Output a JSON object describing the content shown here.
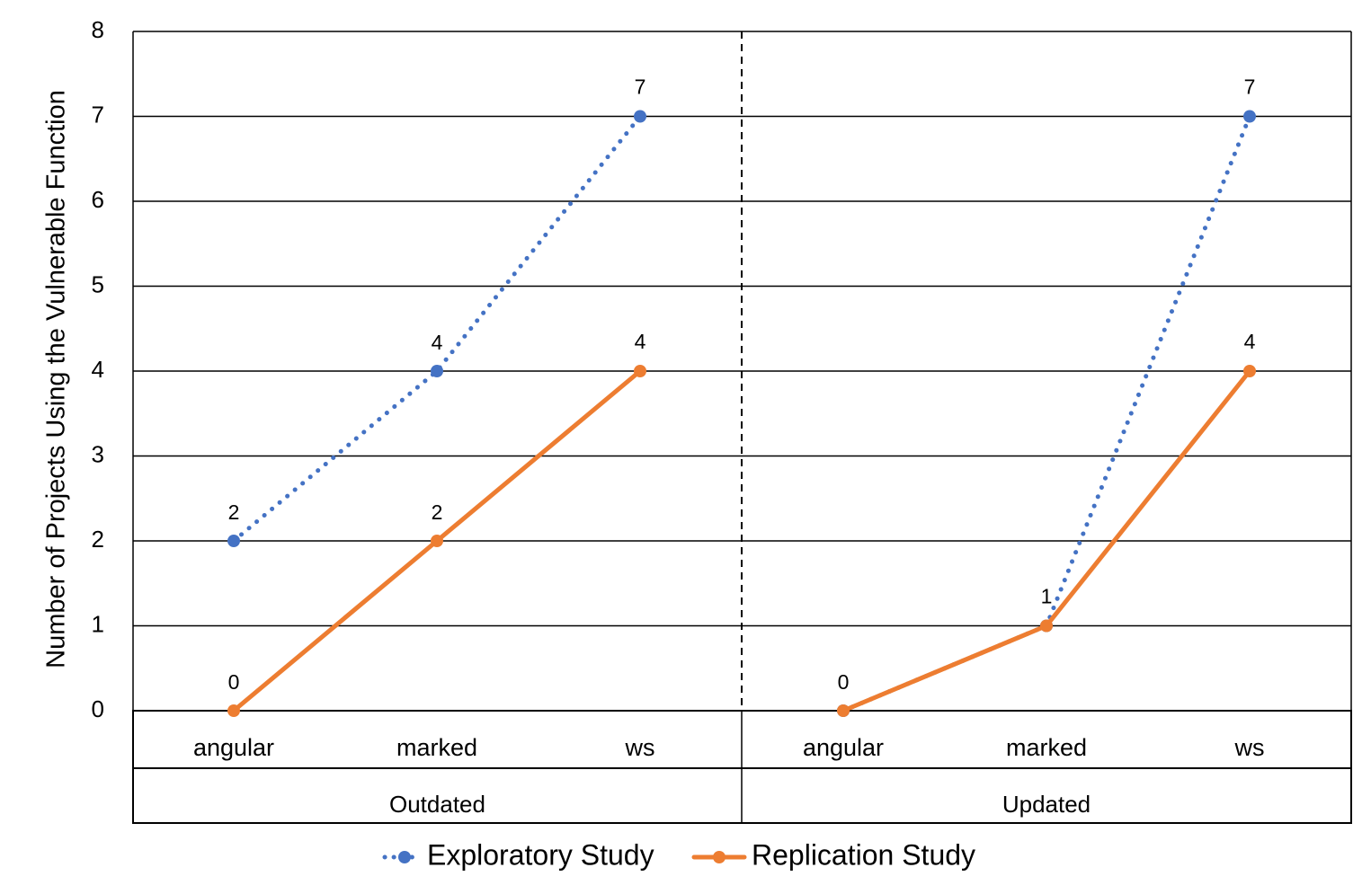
{
  "chart_data": {
    "type": "line",
    "title": "",
    "xlabel": "",
    "ylabel": "Number of Projects Using the Vulnerable Function",
    "ylim": [
      0,
      8
    ],
    "yticks": [
      0,
      1,
      2,
      3,
      4,
      5,
      6,
      7,
      8
    ],
    "grid": true,
    "groups": [
      {
        "name": "Outdated",
        "categories": [
          "angular",
          "marked",
          "ws"
        ]
      },
      {
        "name": "Updated",
        "categories": [
          "angular",
          "marked",
          "ws"
        ]
      }
    ],
    "series": [
      {
        "name": "Exploratory Study",
        "color": "#4472C4",
        "line_style": "dotted",
        "values": [
          [
            2,
            4,
            7
          ],
          [
            0,
            1,
            7
          ]
        ],
        "data_labels": [
          [
            "2",
            "4",
            "7"
          ],
          [
            "",
            "1",
            "7"
          ]
        ]
      },
      {
        "name": "Replication Study",
        "color": "#ED7D31",
        "line_style": "solid",
        "values": [
          [
            0,
            2,
            4
          ],
          [
            0,
            1,
            4
          ]
        ],
        "data_labels": [
          [
            "0",
            "2",
            "4"
          ],
          [
            "0",
            "",
            "4"
          ]
        ]
      }
    ],
    "legend_position": "bottom"
  }
}
